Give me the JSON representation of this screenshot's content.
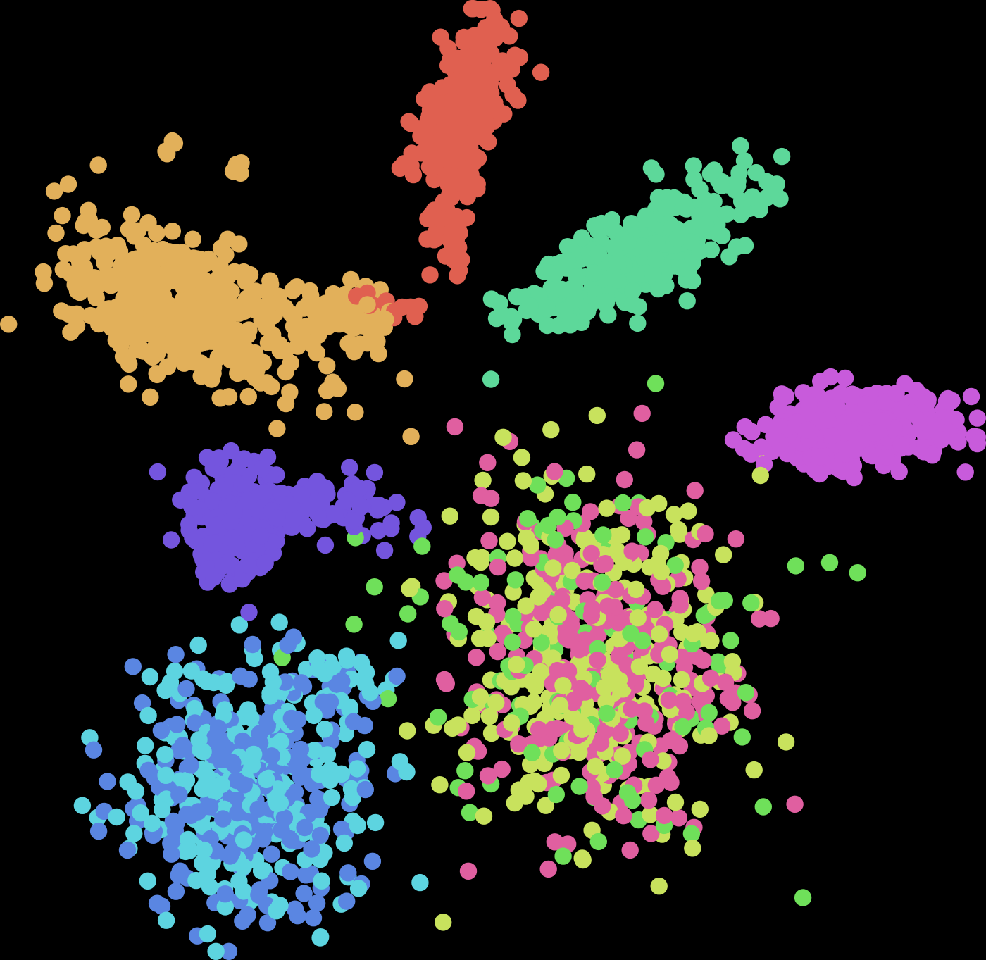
{
  "chart_data": {
    "type": "scatter",
    "title": "",
    "xlabel": "",
    "ylabel": "",
    "grid": false,
    "legend": "none",
    "background": "#000000",
    "xlim": [
      0,
      100
    ],
    "ylim": [
      0,
      100
    ],
    "marker_radius": 1.0,
    "series": [
      {
        "color": "#E2B05A",
        "clusters": [
          {
            "cx": 17,
            "cy": 68.5,
            "sx": 6.8,
            "sy": 3.6,
            "rot": -22,
            "n": 480
          },
          {
            "cx": 33,
            "cy": 67.5,
            "sx": 3.2,
            "sy": 1.5,
            "rot": -5,
            "n": 70
          },
          {
            "cx": 16.5,
            "cy": 85.5,
            "sx": 0.6,
            "sy": 0.6,
            "rot": 0,
            "n": 4
          },
          {
            "cx": 23.5,
            "cy": 83.2,
            "sx": 0.5,
            "sy": 0.5,
            "rot": 0,
            "n": 4
          }
        ]
      },
      {
        "color": "#E06050",
        "clusters": [
          {
            "cx": 46.8,
            "cy": 89.5,
            "sx": 2.0,
            "sy": 4.6,
            "rot": -20,
            "n": 340
          },
          {
            "cx": 45.5,
            "cy": 75.5,
            "sx": 1.2,
            "sy": 1.6,
            "rot": 0,
            "n": 25
          },
          {
            "cx": 39.5,
            "cy": 68.5,
            "sx": 2.0,
            "sy": 0.9,
            "rot": 0,
            "n": 14
          }
        ]
      },
      {
        "color": "#5DD89A",
        "clusters": [
          {
            "cx": 66.0,
            "cy": 74.5,
            "sx": 6.4,
            "sy": 2.4,
            "rot": 33,
            "n": 360
          },
          {
            "cx": 53.5,
            "cy": 68.8,
            "sx": 2.2,
            "sy": 0.7,
            "rot": 15,
            "n": 18
          }
        ]
      },
      {
        "color": "#C85BDB",
        "clusters": [
          {
            "cx": 88.0,
            "cy": 55.5,
            "sx": 5.2,
            "sy": 2.0,
            "rot": 4,
            "n": 340
          }
        ]
      },
      {
        "color": "#7455DE",
        "clusters": [
          {
            "cx": 23.2,
            "cy": 45.8,
            "sx": 2.5,
            "sy": 3.0,
            "rot": 0,
            "n": 260
          },
          {
            "cx": 33.0,
            "cy": 47.2,
            "sx": 5.0,
            "sy": 1.8,
            "rot": 0,
            "n": 80
          }
        ]
      },
      {
        "color": "#E05FA0",
        "clusters": [
          {
            "cx": 60.5,
            "cy": 30.5,
            "sx": 7.5,
            "sy": 8.8,
            "rot": 0,
            "n": 300
          }
        ]
      },
      {
        "color": "#C8E25D",
        "clusters": [
          {
            "cx": 60.5,
            "cy": 30.5,
            "sx": 7.8,
            "sy": 9.2,
            "rot": 0,
            "n": 280
          }
        ]
      },
      {
        "color": "#6FE05A",
        "clusters": [
          {
            "cx": 60.5,
            "cy": 30.5,
            "sx": 9.2,
            "sy": 10.5,
            "rot": 0,
            "n": 130
          }
        ]
      },
      {
        "color": "#5A86E2",
        "clusters": [
          {
            "cx": 24.5,
            "cy": 17.0,
            "sx": 6.0,
            "sy": 6.5,
            "rot": 0,
            "n": 260
          },
          {
            "cx": 33.5,
            "cy": 28.0,
            "sx": 2.5,
            "sy": 2.2,
            "rot": 0,
            "n": 20
          }
        ]
      },
      {
        "color": "#5DD4E0",
        "clusters": [
          {
            "cx": 24.5,
            "cy": 17.0,
            "sx": 6.2,
            "sy": 6.7,
            "rot": 0,
            "n": 270
          },
          {
            "cx": 34.0,
            "cy": 28.5,
            "sx": 2.8,
            "sy": 2.5,
            "rot": 0,
            "n": 25
          }
        ]
      }
    ]
  }
}
